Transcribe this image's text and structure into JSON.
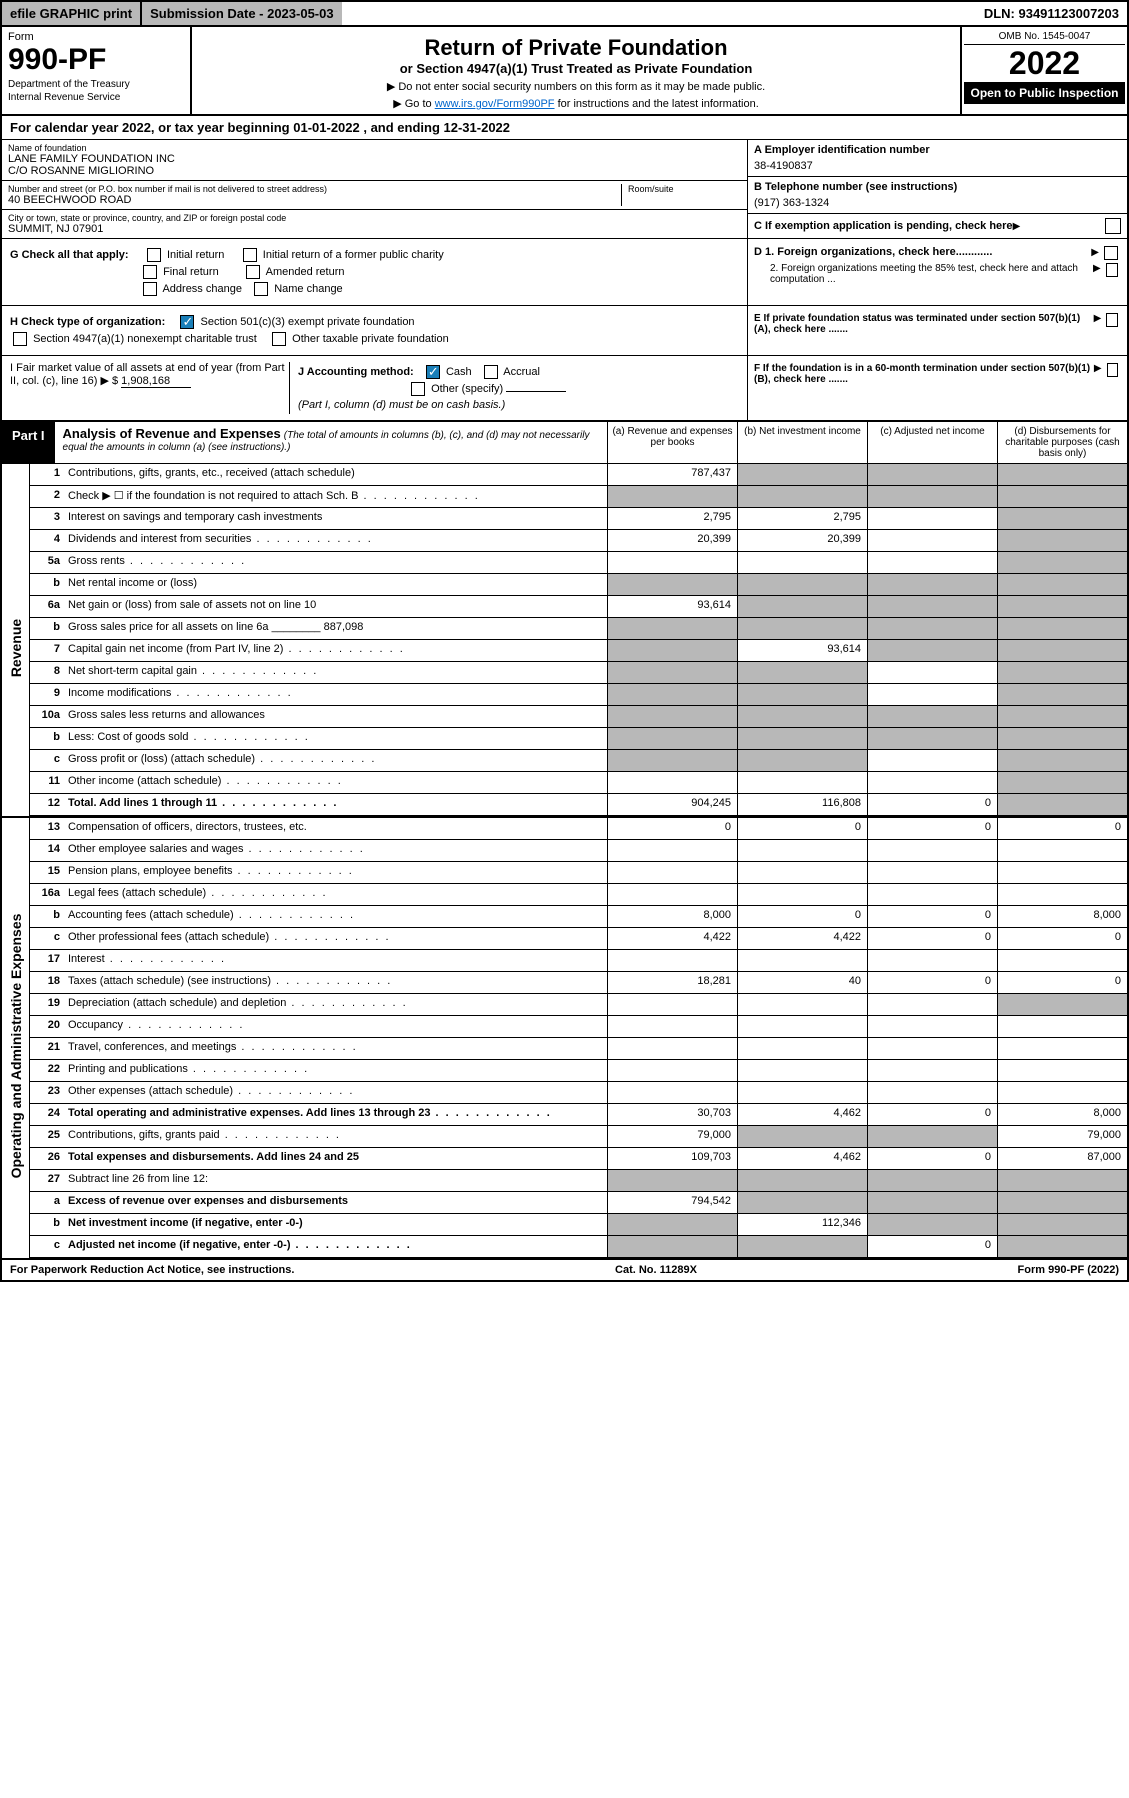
{
  "topbar": {
    "efile": "efile GRAPHIC print",
    "submission": "Submission Date - 2023-05-03",
    "dln": "DLN: 93491123007203"
  },
  "header": {
    "form_label": "Form",
    "form_number": "990-PF",
    "dept": "Department of the Treasury",
    "irs": "Internal Revenue Service",
    "title": "Return of Private Foundation",
    "subtitle": "or Section 4947(a)(1) Trust Treated as Private Foundation",
    "note1": "▶ Do not enter social security numbers on this form as it may be made public.",
    "note2_pre": "▶ Go to ",
    "note2_link": "www.irs.gov/Form990PF",
    "note2_post": " for instructions and the latest information.",
    "omb": "OMB No. 1545-0047",
    "year": "2022",
    "open": "Open to Public Inspection"
  },
  "calyr": {
    "pre": "For calendar year 2022, or tax year beginning ",
    "begin": "01-01-2022",
    "mid": " , and ending ",
    "end": "12-31-2022"
  },
  "ident": {
    "name_lbl": "Name of foundation",
    "name1": "LANE FAMILY FOUNDATION INC",
    "name2": "C/O ROSANNE MIGLIORINO",
    "addr_lbl": "Number and street (or P.O. box number if mail is not delivered to street address)",
    "addr": "40 BEECHWOOD ROAD",
    "room_lbl": "Room/suite",
    "city_lbl": "City or town, state or province, country, and ZIP or foreign postal code",
    "city": "SUMMIT, NJ  07901",
    "a_lbl": "A Employer identification number",
    "a_val": "38-4190837",
    "b_lbl": "B Telephone number (see instructions)",
    "b_val": "(917) 363-1324",
    "c_lbl": "C If exemption application is pending, check here",
    "d1": "D 1. Foreign organizations, check here............",
    "d2": "2. Foreign organizations meeting the 85% test, check here and attach computation ...",
    "e": "E  If private foundation status was terminated under section 507(b)(1)(A), check here .......",
    "f": "F  If the foundation is in a 60-month termination under section 507(b)(1)(B), check here ......."
  },
  "checks": {
    "g_lbl": "G Check all that apply:",
    "g_init": "Initial return",
    "g_init2": "Initial return of a former public charity",
    "g_final": "Final return",
    "g_amend": "Amended return",
    "g_addr": "Address change",
    "g_name": "Name change",
    "h_lbl": "H Check type of organization:",
    "h_501": "Section 501(c)(3) exempt private foundation",
    "h_4947": "Section 4947(a)(1) nonexempt charitable trust",
    "h_other": "Other taxable private foundation",
    "i_lbl": "I Fair market value of all assets at end of year (from Part II, col. (c), line 16) ▶ $",
    "i_val": "1,908,168",
    "j_lbl": "J Accounting method:",
    "j_cash": "Cash",
    "j_accr": "Accrual",
    "j_other": "Other (specify)",
    "j_note": "(Part I, column (d) must be on cash basis.)"
  },
  "part1": {
    "label": "Part I",
    "heading": "Analysis of Revenue and Expenses",
    "sub": "(The total of amounts in columns (b), (c), and (d) may not necessarily equal the amounts in column (a) (see instructions).)",
    "col_a": "(a) Revenue and expenses per books",
    "col_b": "(b) Net investment income",
    "col_c": "(c) Adjusted net income",
    "col_d": "(d) Disbursements for charitable purposes (cash basis only)"
  },
  "vlabels": {
    "rev": "Revenue",
    "exp": "Operating and Administrative Expenses"
  },
  "rows": [
    {
      "n": "1",
      "d": "Contributions, gifts, grants, etc., received (attach schedule)",
      "a": "787,437",
      "ga": false,
      "gb": true,
      "gc": true,
      "gd": true
    },
    {
      "n": "2",
      "d": "Check ▶ ☐ if the foundation is not required to attach Sch. B",
      "dots": true,
      "ga": true,
      "gb": true,
      "gc": true,
      "gd": true
    },
    {
      "n": "3",
      "d": "Interest on savings and temporary cash investments",
      "a": "2,795",
      "b": "2,795",
      "gd": true
    },
    {
      "n": "4",
      "d": "Dividends and interest from securities",
      "dots": true,
      "a": "20,399",
      "b": "20,399",
      "gd": true
    },
    {
      "n": "5a",
      "d": "Gross rents",
      "dots": true,
      "gd": true
    },
    {
      "n": "b",
      "d": "Net rental income or (loss)",
      "ga": true,
      "gb": true,
      "gc": true,
      "gd": true
    },
    {
      "n": "6a",
      "d": "Net gain or (loss) from sale of assets not on line 10",
      "a": "93,614",
      "gb": true,
      "gc": true,
      "gd": true
    },
    {
      "n": "b",
      "d": "Gross sales price for all assets on line 6a ________ 887,098",
      "ga": true,
      "gb": true,
      "gc": true,
      "gd": true
    },
    {
      "n": "7",
      "d": "Capital gain net income (from Part IV, line 2)",
      "dots": true,
      "ga": true,
      "b": "93,614",
      "gc": true,
      "gd": true
    },
    {
      "n": "8",
      "d": "Net short-term capital gain",
      "dots": true,
      "ga": true,
      "gb": true,
      "gd": true
    },
    {
      "n": "9",
      "d": "Income modifications",
      "dots": true,
      "ga": true,
      "gb": true,
      "gd": true
    },
    {
      "n": "10a",
      "d": "Gross sales less returns and allowances",
      "ga": true,
      "gb": true,
      "gc": true,
      "gd": true
    },
    {
      "n": "b",
      "d": "Less: Cost of goods sold",
      "dots": true,
      "ga": true,
      "gb": true,
      "gc": true,
      "gd": true
    },
    {
      "n": "c",
      "d": "Gross profit or (loss) (attach schedule)",
      "dots": true,
      "ga": true,
      "gb": true,
      "gd": true
    },
    {
      "n": "11",
      "d": "Other income (attach schedule)",
      "dots": true,
      "gd": true
    },
    {
      "n": "12",
      "d": "Total. Add lines 1 through 11",
      "bold": true,
      "dots": true,
      "a": "904,245",
      "b": "116,808",
      "c": "0",
      "gd": true
    }
  ],
  "exp_rows": [
    {
      "n": "13",
      "d": "Compensation of officers, directors, trustees, etc.",
      "a": "0",
      "b": "0",
      "c": "0",
      "dd": "0"
    },
    {
      "n": "14",
      "d": "Other employee salaries and wages",
      "dots": true
    },
    {
      "n": "15",
      "d": "Pension plans, employee benefits",
      "dots": true
    },
    {
      "n": "16a",
      "d": "Legal fees (attach schedule)",
      "dots": true
    },
    {
      "n": "b",
      "d": "Accounting fees (attach schedule)",
      "dots": true,
      "a": "8,000",
      "b": "0",
      "c": "0",
      "dd": "8,000"
    },
    {
      "n": "c",
      "d": "Other professional fees (attach schedule)",
      "dots": true,
      "a": "4,422",
      "b": "4,422",
      "c": "0",
      "dd": "0"
    },
    {
      "n": "17",
      "d": "Interest",
      "dots": true
    },
    {
      "n": "18",
      "d": "Taxes (attach schedule) (see instructions)",
      "dots": true,
      "a": "18,281",
      "b": "40",
      "c": "0",
      "dd": "0"
    },
    {
      "n": "19",
      "d": "Depreciation (attach schedule) and depletion",
      "dots": true,
      "gd": true
    },
    {
      "n": "20",
      "d": "Occupancy",
      "dots": true
    },
    {
      "n": "21",
      "d": "Travel, conferences, and meetings",
      "dots": true
    },
    {
      "n": "22",
      "d": "Printing and publications",
      "dots": true
    },
    {
      "n": "23",
      "d": "Other expenses (attach schedule)",
      "dots": true
    },
    {
      "n": "24",
      "d": "Total operating and administrative expenses. Add lines 13 through 23",
      "bold": true,
      "dots": true,
      "a": "30,703",
      "b": "4,462",
      "c": "0",
      "dd": "8,000"
    },
    {
      "n": "25",
      "d": "Contributions, gifts, grants paid",
      "dots": true,
      "a": "79,000",
      "gb": true,
      "gc": true,
      "dd": "79,000"
    },
    {
      "n": "26",
      "d": "Total expenses and disbursements. Add lines 24 and 25",
      "bold": true,
      "a": "109,703",
      "b": "4,462",
      "c": "0",
      "dd": "87,000"
    },
    {
      "n": "27",
      "d": "Subtract line 26 from line 12:",
      "ga": true,
      "gb": true,
      "gc": true,
      "gd": true
    },
    {
      "n": "a",
      "d": "Excess of revenue over expenses and disbursements",
      "bold": true,
      "a": "794,542",
      "gb": true,
      "gc": true,
      "gd": true
    },
    {
      "n": "b",
      "d": "Net investment income (if negative, enter -0-)",
      "bold": true,
      "ga": true,
      "b": "112,346",
      "gc": true,
      "gd": true
    },
    {
      "n": "c",
      "d": "Adjusted net income (if negative, enter -0-)",
      "bold": true,
      "dots": true,
      "ga": true,
      "gb": true,
      "c": "0",
      "gd": true
    }
  ],
  "footer": {
    "left": "For Paperwork Reduction Act Notice, see instructions.",
    "mid": "Cat. No. 11289X",
    "right": "Form 990-PF (2022)"
  }
}
